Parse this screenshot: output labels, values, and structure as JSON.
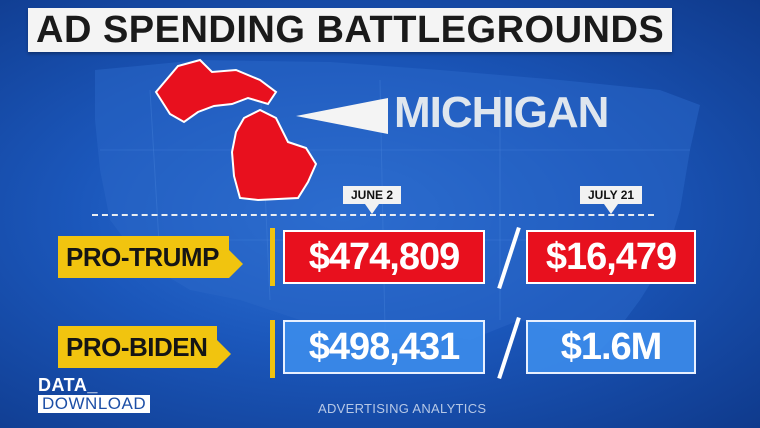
{
  "title": "AD SPENDING BATTLEGROUNDS",
  "state": "MICHIGAN",
  "dates": {
    "first": "JUNE 2",
    "second": "JULY 21"
  },
  "rows": [
    {
      "label": "PRO-TRUMP",
      "first_value": "$474,809",
      "second_value": "$16,479"
    },
    {
      "label": "PRO-BIDEN",
      "first_value": "$498,431",
      "second_value": "$1.6M"
    }
  ],
  "brand": {
    "top": "DATA_",
    "bottom": "DOWNLOAD"
  },
  "source": "ADVERTISING ANALYTICS",
  "colors": {
    "trump_red": "#e8101e",
    "biden_blue": "#3c8ceb",
    "label_yellow": "#f1c40f"
  },
  "icons": {
    "state_shape": "michigan-shape-icon",
    "pointer": "pointer-arrow-icon"
  }
}
